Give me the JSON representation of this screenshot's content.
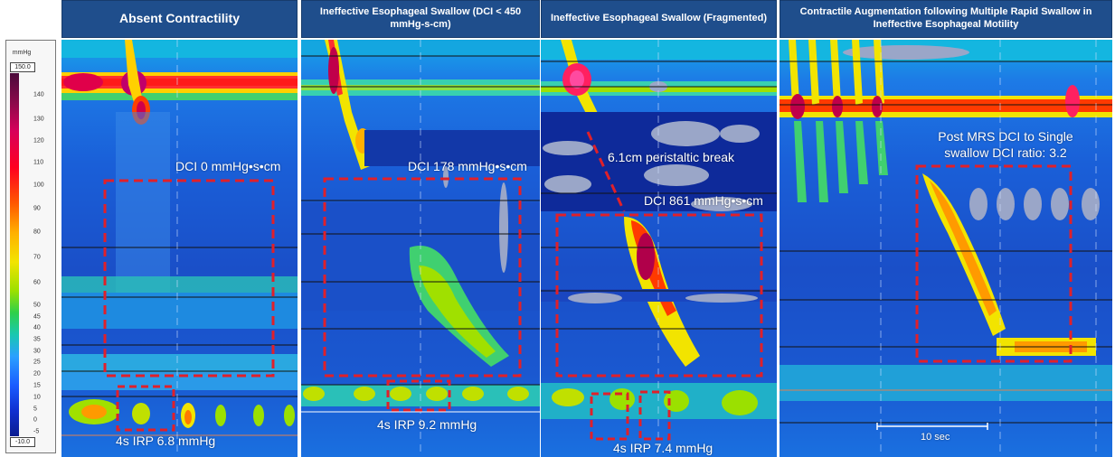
{
  "scale": {
    "unit": "mmHg",
    "max": "150.0",
    "min": "-10.0",
    "ticks": [
      "140",
      "130",
      "120",
      "110",
      "100",
      "90",
      "80",
      "70",
      "60",
      "50",
      "45",
      "40",
      "35",
      "30",
      "25",
      "20",
      "15",
      "10",
      "5",
      "0",
      "-5"
    ]
  },
  "panels": [
    {
      "title": "Absent Contractility",
      "dci": "DCI 0 mmHg•s•cm",
      "irp": "4s IRP 6.8 mmHg"
    },
    {
      "title": "Ineffective Esophageal Swallow (DCI < 450 mmHg-s-cm)",
      "dci": "DCI 178 mmHg•s•cm",
      "irp": "4s IRP 9.2 mmHg"
    },
    {
      "title": "Ineffective Esophageal Swallow (Fragmented)",
      "break": "6.1cm peristaltic break",
      "dci": "DCI 861 mmHg•s•cm",
      "irp": "4s IRP 7.4 mmHg"
    },
    {
      "title": "Contractile Augmentation following Multiple Rapid Swallow in Ineffective Esophageal Motility",
      "ratio": "Post MRS DCI to Single swallow DCI ratio: 3.2",
      "timescale": "10 sec"
    }
  ],
  "colors": {
    "title_bg": "#1f4e8c",
    "box_outline": "#e0202a",
    "annotation_text": "#ffffff"
  }
}
